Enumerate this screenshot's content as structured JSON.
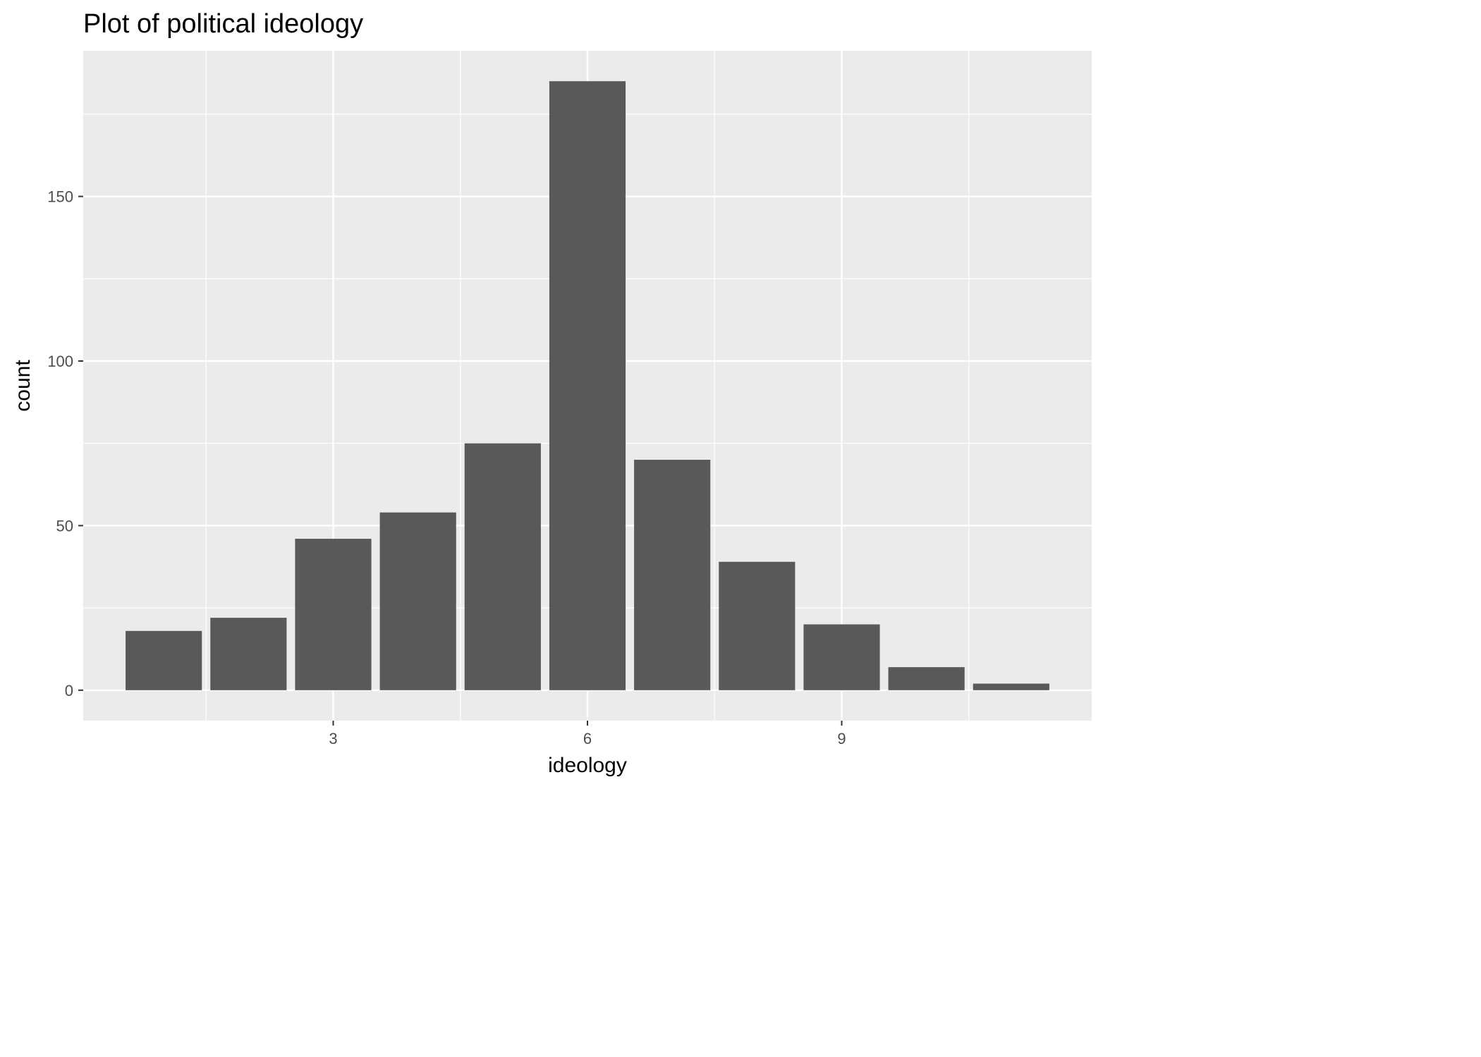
{
  "chart_data": {
    "type": "bar",
    "title": "Plot of political ideology",
    "xlabel": "ideology",
    "ylabel": "count",
    "x": [
      1,
      2,
      3,
      4,
      5,
      6,
      7,
      8,
      9,
      10,
      11
    ],
    "values": [
      18,
      22,
      46,
      54,
      75,
      185,
      70,
      39,
      20,
      7,
      2
    ],
    "xlim": [
      0.05,
      11.95
    ],
    "ylim": [
      -9.25,
      194.25
    ],
    "x_ticks": [
      3,
      6,
      9
    ],
    "x_tick_labels": [
      "3",
      "6",
      "9"
    ],
    "y_ticks": [
      0,
      50,
      100,
      150
    ],
    "y_tick_labels": [
      "0",
      "50",
      "100",
      "150"
    ],
    "grid": true,
    "legend": "none",
    "colors": {
      "bar": "#595959",
      "panel": "#ebebeb",
      "grid": "#ffffff",
      "tick_text": "#4d4d4d",
      "text": "#000000"
    }
  }
}
